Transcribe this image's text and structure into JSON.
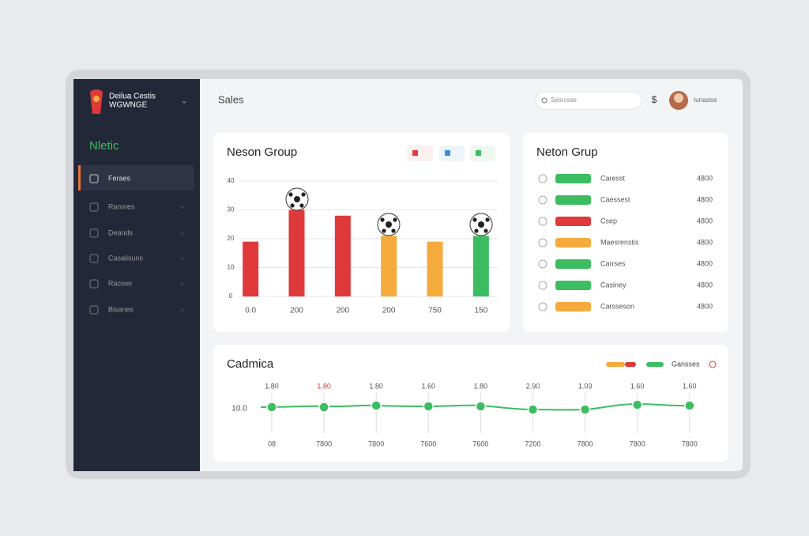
{
  "sidebar": {
    "brand": [
      "Deilua Cestis",
      "WGWNGE"
    ],
    "section": "Nletic",
    "nav": [
      "Feraes",
      "Ramnes",
      "Deands",
      "Casalisuns",
      "Raciser",
      "Bisanes"
    ]
  },
  "topbar": {
    "title": "Sales",
    "search": "Sesrcsse",
    "currency": "$",
    "user": "Iunasiss"
  },
  "chart_data": [
    {
      "type": "bar",
      "title": "Neson Group",
      "categories": [
        "0.0",
        "200",
        "200",
        "200",
        "750",
        "150"
      ],
      "values": [
        19,
        30,
        28,
        21,
        19,
        21
      ],
      "colors": [
        "#e0393b",
        "#e0393b",
        "#e0393b",
        "#f5ab3c",
        "#f5ab3c",
        "#3cbd61"
      ],
      "ylim": [
        0,
        40
      ],
      "yticks": [
        0,
        10,
        20,
        30,
        40
      ],
      "grid": true
    }
  ],
  "list_card": {
    "title": "Neton Grup",
    "rows": [
      {
        "label": "Caresst",
        "value": 4800,
        "color": "#3cbd61"
      },
      {
        "label": "Caessest",
        "value": 4800,
        "color": "#3cbd61"
      },
      {
        "label": "Csep",
        "value": 4800,
        "color": "#e0393b"
      },
      {
        "label": "Maesrenstis",
        "value": 4800,
        "color": "#f5ab3c"
      },
      {
        "label": "Carrses",
        "value": 4800,
        "color": "#3cbd61"
      },
      {
        "label": "Casiney",
        "value": 4800,
        "color": "#3cbd61"
      },
      {
        "label": "Carsseson",
        "value": 4800,
        "color": "#f5ab3c"
      }
    ]
  },
  "timeline_card": {
    "title": "Cadmica",
    "legend": "Gansses",
    "y_label": "10.0",
    "top_labels": [
      "1.80",
      "1.80",
      "1.80",
      "1.60",
      "1.80",
      "2.90",
      "1.03",
      "1.60",
      "1.60"
    ],
    "bottom_labels": [
      "08",
      "7800",
      "7800",
      "7600",
      "7600",
      "7200",
      "7800",
      "7800",
      "7800"
    ]
  }
}
